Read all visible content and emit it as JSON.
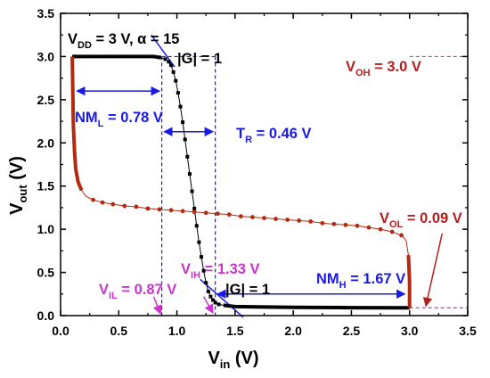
{
  "chart_data": {
    "type": "line",
    "xlabel_main": "V",
    "xlabel_sub": "in",
    "xlabel_unit": " (V)",
    "ylabel_main": "V",
    "ylabel_sub": "out",
    "ylabel_unit": " (V)",
    "xlim": [
      0,
      3.5
    ],
    "ylim": [
      0,
      3.5
    ],
    "x_ticks": [
      "0.0",
      "0.5",
      "1.0",
      "1.5",
      "2.0",
      "2.5",
      "3.0",
      "3.5"
    ],
    "y_ticks": [
      "0.0",
      "0.5",
      "1.0",
      "1.5",
      "2.0",
      "2.5",
      "3.0",
      "3.5"
    ],
    "grid": false,
    "colors": {
      "black": "#000000",
      "red": "#b22a10",
      "blue": "#1a1ae6",
      "magenta": "#cc33cc",
      "dark_red": "#b51e1e"
    },
    "series": [
      {
        "color": "#000000",
        "marker": "square",
        "points": [
          [
            0.1,
            3.0
          ],
          [
            0.3,
            3.0
          ],
          [
            0.5,
            3.0
          ],
          [
            0.7,
            3.0
          ],
          [
            0.8,
            3.0
          ],
          [
            0.85,
            2.99
          ],
          [
            0.9,
            2.97
          ],
          [
            0.93,
            2.94
          ],
          [
            0.95,
            2.9
          ],
          [
            0.97,
            2.82
          ],
          [
            0.99,
            2.72
          ],
          [
            1.01,
            2.58
          ],
          [
            1.03,
            2.42
          ],
          [
            1.05,
            2.24
          ],
          [
            1.07,
            2.04
          ],
          [
            1.09,
            1.84
          ],
          [
            1.11,
            1.64
          ],
          [
            1.13,
            1.44
          ],
          [
            1.15,
            1.24
          ],
          [
            1.17,
            1.04
          ],
          [
            1.19,
            0.85
          ],
          [
            1.21,
            0.68
          ],
          [
            1.23,
            0.52
          ],
          [
            1.25,
            0.38
          ],
          [
            1.27,
            0.28
          ],
          [
            1.29,
            0.22
          ],
          [
            1.31,
            0.18
          ],
          [
            1.33,
            0.15
          ],
          [
            1.36,
            0.13
          ],
          [
            1.4,
            0.12
          ],
          [
            1.5,
            0.105
          ],
          [
            1.7,
            0.1
          ],
          [
            2.0,
            0.095
          ],
          [
            2.5,
            0.092
          ],
          [
            3.0,
            0.09
          ]
        ]
      },
      {
        "color": "#b22a10",
        "marker": "circle",
        "points": [
          [
            0.1,
            3.0
          ],
          [
            0.105,
            2.6
          ],
          [
            0.11,
            2.2
          ],
          [
            0.12,
            1.9
          ],
          [
            0.13,
            1.7
          ],
          [
            0.15,
            1.55
          ],
          [
            0.18,
            1.45
          ],
          [
            0.22,
            1.38
          ],
          [
            0.28,
            1.34
          ],
          [
            0.36,
            1.31
          ],
          [
            0.45,
            1.29
          ],
          [
            0.55,
            1.27
          ],
          [
            0.65,
            1.26
          ],
          [
            0.75,
            1.24
          ],
          [
            0.85,
            1.23
          ],
          [
            0.95,
            1.22
          ],
          [
            1.05,
            1.21
          ],
          [
            1.15,
            1.2
          ],
          [
            1.25,
            1.19
          ],
          [
            1.35,
            1.18
          ],
          [
            1.45,
            1.17
          ],
          [
            1.55,
            1.15
          ],
          [
            1.65,
            1.14
          ],
          [
            1.75,
            1.13
          ],
          [
            1.85,
            1.12
          ],
          [
            1.95,
            1.11
          ],
          [
            2.05,
            1.1
          ],
          [
            2.15,
            1.09
          ],
          [
            2.25,
            1.07
          ],
          [
            2.35,
            1.06
          ],
          [
            2.45,
            1.05
          ],
          [
            2.55,
            1.04
          ],
          [
            2.65,
            1.02
          ],
          [
            2.75,
            1.0
          ],
          [
            2.85,
            0.97
          ],
          [
            2.93,
            0.93
          ],
          [
            2.97,
            0.87
          ],
          [
            2.99,
            0.7
          ],
          [
            3.0,
            0.4
          ],
          [
            3.0,
            0.09
          ]
        ]
      }
    ],
    "annotations": {
      "vdd_main": "V",
      "vdd_sub": "DD",
      "vdd_rest": " = 3 V, α = 15",
      "g_top": "|G| = 1",
      "g_bottom": "|G| = 1",
      "voh_main": "V",
      "voh_sub": "OH",
      "voh_rest": " = 3.0 V",
      "nml_main": "NM",
      "nml_sub": "L",
      "nml_rest": " = 0.78 V",
      "tr_main": "T",
      "tr_sub": "R",
      "tr_rest": " = 0.46 V",
      "vol_main": "V",
      "vol_sub": "OL",
      "vol_rest": " = 0.09 V",
      "vih_main": "V",
      "vih_sub": "IH",
      "vih_rest": " = 1.33 V",
      "vil_main": "V",
      "vil_sub": "IL",
      "vil_rest": " = 0.87 V",
      "nmh_main": "NM",
      "nmh_sub": "H",
      "nmh_rest": " = 1.67 V"
    }
  }
}
